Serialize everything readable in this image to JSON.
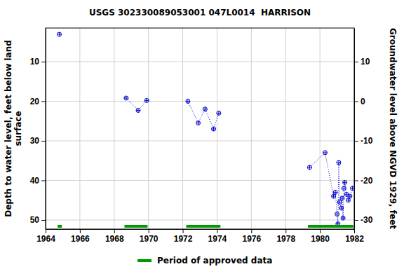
{
  "chart_data": {
    "type": "scatter",
    "title": "USGS 302330089053001 047L0014  HARRISON",
    "y_label": [
      "Depth to water level, feet below land",
      "surface"
    ],
    "y2_label": "Groundwater level above NGVD 1929, feet",
    "xlim": [
      1964,
      1982
    ],
    "xticks": [
      1964,
      1966,
      1968,
      1970,
      1972,
      1974,
      1976,
      1978,
      1980,
      1982
    ],
    "ylim": [
      1.5,
      52.3
    ],
    "yticks": [
      10,
      20,
      30,
      40,
      50
    ],
    "y2lim": [
      18.5,
      -32.3
    ],
    "y2ticks": [
      10,
      0,
      -10,
      -20,
      -30
    ],
    "grid": true,
    "legend": "bottom",
    "series": [
      {
        "type": "line",
        "color": "#0000cc",
        "marker": "circle-plus",
        "line_style": "dotted",
        "x": [
          1964.8,
          1967,
          1968.7,
          1969.4,
          1969.9,
          1971,
          1972.3,
          1972.9,
          1973.3,
          1973.8,
          1974.1,
          1976,
          1979.4,
          1980.3,
          1980.8,
          1980.9,
          1981.0,
          1981.05,
          1981.1,
          1981.15,
          1981.25,
          1981.3,
          1981.35,
          1981.4,
          1981.45,
          1981.55,
          1981.65,
          1981.75,
          1981.9
        ],
        "values": [
          3.1,
          null,
          19.2,
          22.3,
          19.8,
          null,
          20.0,
          25.5,
          22.0,
          27.0,
          23.0,
          null,
          36.7,
          33.0,
          44.0,
          43.0,
          48.5,
          51.0,
          35.5,
          45.5,
          47.0,
          44.5,
          49.5,
          42.0,
          40.5,
          43.5,
          45.0,
          44.0,
          42.0
        ]
      },
      {
        "type": "period",
        "name": "Period of approved data",
        "color": "#009900",
        "start": [
          1964.7,
          1968.6,
          1972.2,
          1979.3
        ],
        "end": [
          1964.95,
          1969.95,
          1974.2,
          1981.95
        ]
      }
    ]
  }
}
